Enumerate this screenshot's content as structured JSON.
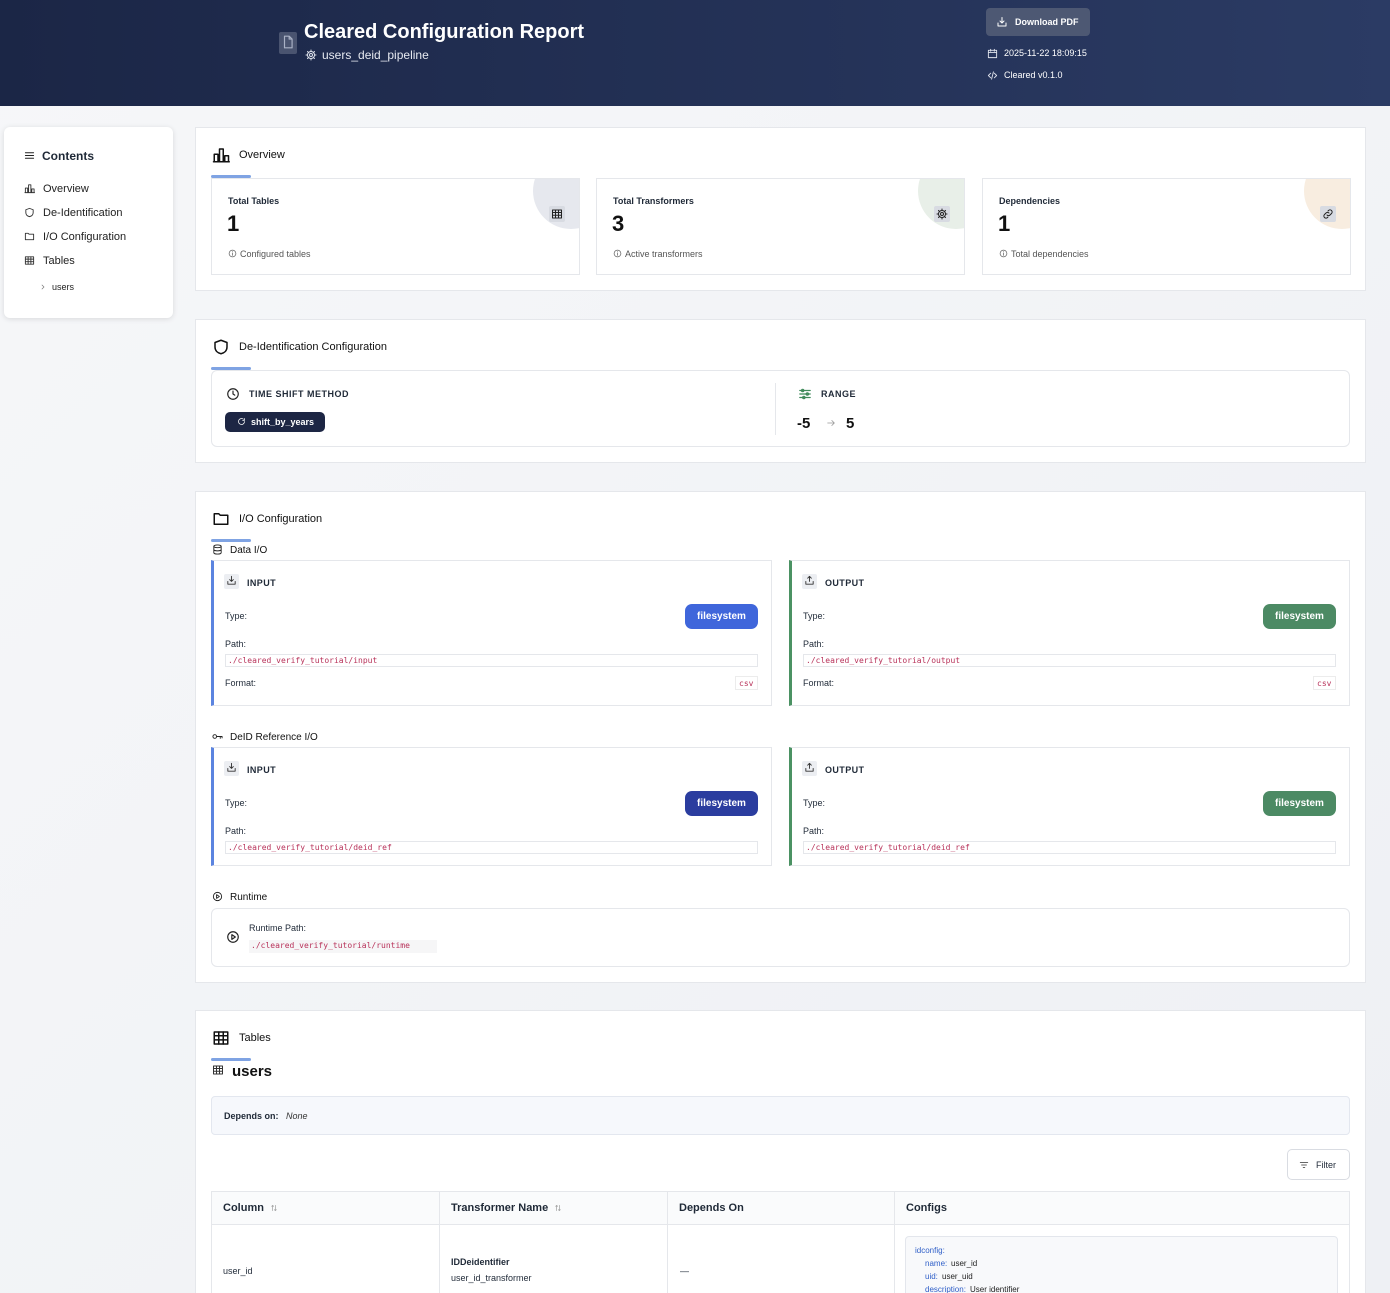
{
  "header": {
    "title": "Cleared Configuration Report",
    "pipeline": "users_deid_pipeline",
    "download": "Download PDF",
    "timestamp": "2025-11-22 18:09:15",
    "version": "Cleared v0.1.0"
  },
  "sidebar": {
    "title": "Contents",
    "items": [
      "Overview",
      "De-Identification",
      "I/O Configuration",
      "Tables"
    ],
    "subitems": [
      "users"
    ]
  },
  "overview": {
    "title": "Overview",
    "cards": [
      {
        "label": "Total Tables",
        "value": 1,
        "note": "Configured tables"
      },
      {
        "label": "Total Transformers",
        "value": 3,
        "note": "Active transformers"
      },
      {
        "label": "Dependencies",
        "value": 1,
        "note": "Total dependencies"
      }
    ]
  },
  "deid": {
    "title": "De-Identification Configuration",
    "method_label": "TIME SHIFT METHOD",
    "method": "shift_by_years",
    "range_label": "RANGE",
    "range_min": -5,
    "range_max": 5
  },
  "io": {
    "title": "I/O Configuration",
    "groups": [
      {
        "title": "Data I/O",
        "input": {
          "heading": "INPUT",
          "type_label": "Type:",
          "type": "filesystem",
          "path_label": "Path:",
          "path": "./cleared_verify_tutorial/input",
          "format_label": "Format:",
          "format": "csv"
        },
        "output": {
          "heading": "OUTPUT",
          "type_label": "Type:",
          "type": "filesystem",
          "path_label": "Path:",
          "path": "./cleared_verify_tutorial/output",
          "format_label": "Format:",
          "format": "csv"
        }
      },
      {
        "title": "DeID Reference I/O",
        "input": {
          "heading": "INPUT",
          "type_label": "Type:",
          "type": "filesystem",
          "path_label": "Path:",
          "path": "./cleared_verify_tutorial/deid_ref"
        },
        "output": {
          "heading": "OUTPUT",
          "type_label": "Type:",
          "type": "filesystem",
          "path_label": "Path:",
          "path": "./cleared_verify_tutorial/deid_ref"
        }
      }
    ],
    "runtime": {
      "title": "Runtime",
      "path_label": "Runtime Path:",
      "path": "./cleared_verify_tutorial/runtime"
    }
  },
  "tables": {
    "title": "Tables",
    "table": {
      "name": "users",
      "depends_label": "Depends on:",
      "depends": "None",
      "filter": "Filter",
      "columns": [
        "Column",
        "Transformer Name",
        "Depends On",
        "Configs"
      ],
      "rows": [
        {
          "column": "user_id",
          "transformer": "IDDeidentifier",
          "transformer_name": "user_id_transformer",
          "depends_on": "—",
          "configs": {
            "heading": "idconfig:",
            "entries": [
              {
                "key": "name:",
                "value": "user_id"
              },
              {
                "key": "uid:",
                "value": "user_uid"
              },
              {
                "key": "description:",
                "value": "User identifier"
              }
            ]
          }
        }
      ]
    }
  }
}
